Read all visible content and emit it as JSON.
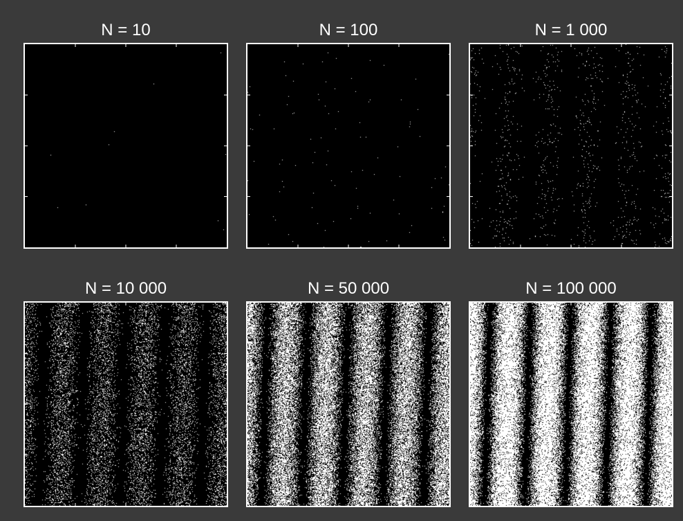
{
  "chart_data": [
    {
      "type": "scatter",
      "title": "N = 10",
      "n": 10,
      "fringe_periods": 5,
      "colors": {
        "background": "#000000",
        "points": "#ffffff",
        "frame": "#ffffff"
      },
      "x_ticks": 4,
      "y_ticks": 4
    },
    {
      "type": "scatter",
      "title": "N = 100",
      "n": 100,
      "fringe_periods": 5,
      "colors": {
        "background": "#000000",
        "points": "#ffffff",
        "frame": "#ffffff"
      },
      "x_ticks": 4,
      "y_ticks": 4
    },
    {
      "type": "scatter",
      "title": "N = 1 000",
      "n": 1000,
      "fringe_periods": 5,
      "colors": {
        "background": "#000000",
        "points": "#ffffff",
        "frame": "#ffffff"
      },
      "x_ticks": 4,
      "y_ticks": 4
    },
    {
      "type": "scatter",
      "title": "N = 10 000",
      "n": 10000,
      "fringe_periods": 5,
      "colors": {
        "background": "#000000",
        "points": "#ffffff",
        "frame": "#ffffff"
      },
      "x_ticks": 4,
      "y_ticks": 4
    },
    {
      "type": "scatter",
      "title": "N = 50 000",
      "n": 50000,
      "fringe_periods": 5,
      "colors": {
        "background": "#000000",
        "points": "#ffffff",
        "frame": "#ffffff"
      },
      "x_ticks": 4,
      "y_ticks": 4
    },
    {
      "type": "scatter",
      "title": "N = 100 000",
      "n": 100000,
      "fringe_periods": 5,
      "colors": {
        "background": "#000000",
        "points": "#ffffff",
        "frame": "#ffffff"
      },
      "x_ticks": 4,
      "y_ticks": 4
    }
  ],
  "figure": {
    "background": "#3a3a3a"
  }
}
